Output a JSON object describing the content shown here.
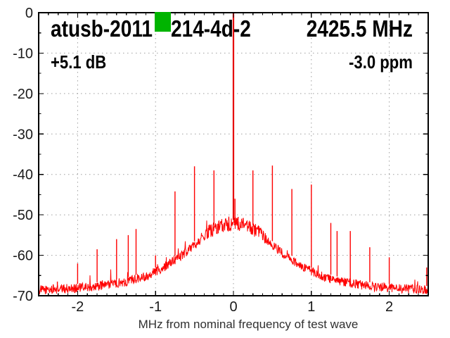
{
  "header": {
    "title_before": "atusb-2011",
    "title_after": "214-4d-2",
    "center_freq": "2425.5 MHz",
    "gain": "+5.1 dB",
    "ppm_offset": "-3.0 ppm",
    "censor_color": "#00b400"
  },
  "chart_data": {
    "type": "line",
    "title": "atusb-2011(censored)214-4d-2",
    "subtitle_right": "2425.5 MHz",
    "annotations": [
      "+5.1 dB",
      "-3.0 ppm"
    ],
    "xlabel": "MHz from nominal frequency of test wave",
    "ylabel": "",
    "xlim": [
      -2.5,
      2.5
    ],
    "ylim": [
      -70,
      0
    ],
    "xticks": [
      -2,
      -1,
      0,
      1,
      2
    ],
    "yticks": [
      0,
      -10,
      -20,
      -30,
      -40,
      -50,
      -60,
      -70
    ],
    "x_minor_step": 0.125,
    "y_minor_step": 5,
    "grid": true,
    "legend": "none",
    "trace_color": "#ff0000",
    "grid_color": "#9e9e9e",
    "axis_color": "#000000",
    "carrier": {
      "freq_mhz": 0.0,
      "peak_db": 0
    },
    "noise_floor_db_by_abs_mhz": [
      [
        0.0,
        -52.2
      ],
      [
        0.15,
        -52.6
      ],
      [
        0.3,
        -54.0
      ],
      [
        0.5,
        -57.5
      ],
      [
        0.7,
        -60.5
      ],
      [
        0.9,
        -63.0
      ],
      [
        1.1,
        -65.0
      ],
      [
        1.4,
        -66.6
      ],
      [
        1.8,
        -67.8
      ],
      [
        2.2,
        -68.3
      ],
      [
        2.5,
        -68.6
      ]
    ],
    "spurs_mhz_db": [
      [
        -2.26,
        -66.5
      ],
      [
        -2.0,
        -62.0
      ],
      [
        -1.75,
        -58.5
      ],
      [
        -1.5,
        -56.0
      ],
      [
        -1.35,
        -55.0
      ],
      [
        -1.25,
        -53.5
      ],
      [
        -1.0,
        -60.0
      ],
      [
        -0.75,
        -44.2
      ],
      [
        -0.5,
        -38.0
      ],
      [
        -0.25,
        -39.0
      ],
      [
        -0.1,
        -51.5
      ],
      [
        -0.06,
        -50.6
      ],
      [
        0.02,
        -46.0
      ],
      [
        0.06,
        -50.5
      ],
      [
        0.11,
        -51.5
      ],
      [
        0.25,
        -39.0
      ],
      [
        0.5,
        -37.8
      ],
      [
        0.75,
        -43.6
      ],
      [
        1.0,
        -42.5
      ],
      [
        1.25,
        -52.0
      ],
      [
        1.33,
        -54.0
      ],
      [
        1.5,
        -54.0
      ],
      [
        1.75,
        -58.0
      ],
      [
        2.0,
        -60.5
      ],
      [
        2.48,
        -63.0
      ]
    ]
  }
}
